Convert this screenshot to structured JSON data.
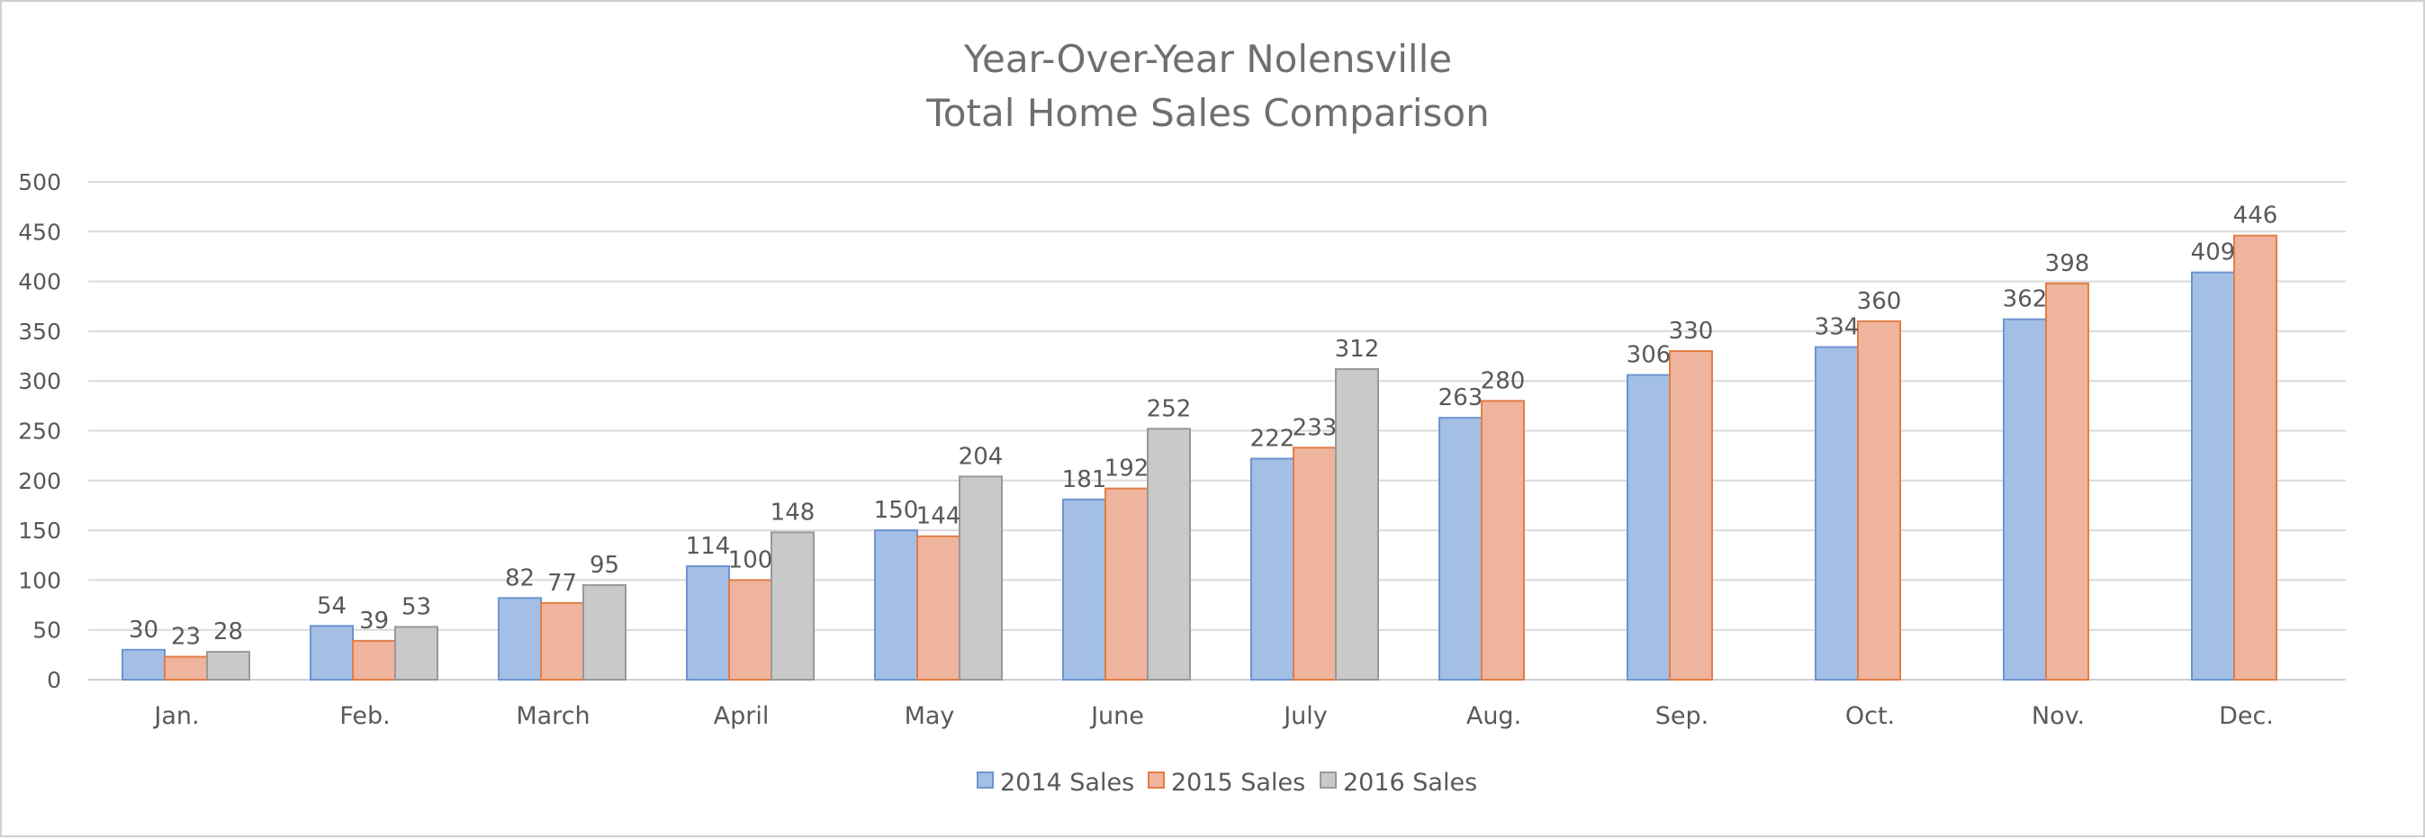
{
  "chart_data": {
    "type": "bar",
    "title": "Year-Over-Year Nolensville",
    "subtitle": "Total Home Sales Comparison",
    "categories": [
      "Jan.",
      "Feb.",
      "March",
      "April",
      "May",
      "June",
      "July",
      "Aug.",
      "Sep.",
      "Oct.",
      "Nov.",
      "Dec."
    ],
    "series": [
      {
        "name": "2014 Sales",
        "color": "#a4bfe6",
        "stroke": "#6d94cf",
        "values": [
          30,
          54,
          82,
          114,
          150,
          181,
          222,
          263,
          306,
          334,
          362,
          409
        ]
      },
      {
        "name": "2015 Sales",
        "color": "#efb49d",
        "stroke": "#e27d45",
        "values": [
          23,
          39,
          77,
          100,
          144,
          192,
          233,
          280,
          330,
          360,
          398,
          446
        ]
      },
      {
        "name": "2016 Sales",
        "color": "#c9c9c9",
        "stroke": "#999999",
        "values": [
          28,
          53,
          95,
          148,
          204,
          252,
          312,
          null,
          null,
          null,
          null,
          null
        ]
      }
    ],
    "yticks": [
      0,
      50,
      100,
      150,
      200,
      250,
      300,
      350,
      400,
      450,
      500
    ],
    "ylim": [
      0,
      500
    ],
    "xlabel": "",
    "ylabel": "",
    "grid": true,
    "legend_position": "bottom"
  }
}
